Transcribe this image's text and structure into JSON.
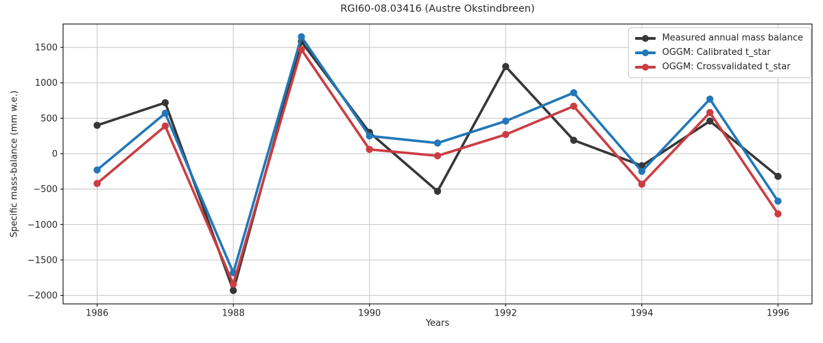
{
  "chart_data": {
    "type": "line",
    "title": "RGI60-08.03416 (Austre Okstindbreen)",
    "xlabel": "Years",
    "ylabel": "Specific mass-balance (mm w.e.)",
    "x": [
      1986,
      1987,
      1988,
      1989,
      1990,
      1991,
      1992,
      1993,
      1994,
      1995,
      1996
    ],
    "series": [
      {
        "name": "Measured annual mass balance",
        "color": "#373737",
        "marker": "circle",
        "values": [
          400,
          720,
          -1930,
          1580,
          300,
          -530,
          1230,
          190,
          -170,
          460,
          -320
        ]
      },
      {
        "name": "OGGM: Calibrated t_star",
        "color": "#2277b8",
        "marker": "circle",
        "values": [
          -230,
          570,
          -1680,
          1650,
          250,
          150,
          460,
          860,
          -250,
          770,
          -670
        ]
      },
      {
        "name": "OGGM: Crossvalidated t_star",
        "color": "#cb3d42",
        "marker": "circle",
        "values": [
          -420,
          390,
          -1840,
          1470,
          60,
          -30,
          270,
          670,
          -430,
          580,
          -850
        ]
      }
    ],
    "xlim": [
      1985.5,
      1996.5
    ],
    "ylim": [
      -2120,
      1830
    ],
    "x_ticks": [
      1986,
      1988,
      1990,
      1992,
      1994,
      1996
    ],
    "y_ticks": [
      -2000,
      -1500,
      -1000,
      -500,
      0,
      500,
      1000,
      1500
    ],
    "grid": true,
    "legend_position": "upper-right",
    "grid_color": "#c3c3c3",
    "axis_color": "#1a1a1a",
    "tick_text_color": "#262626"
  }
}
